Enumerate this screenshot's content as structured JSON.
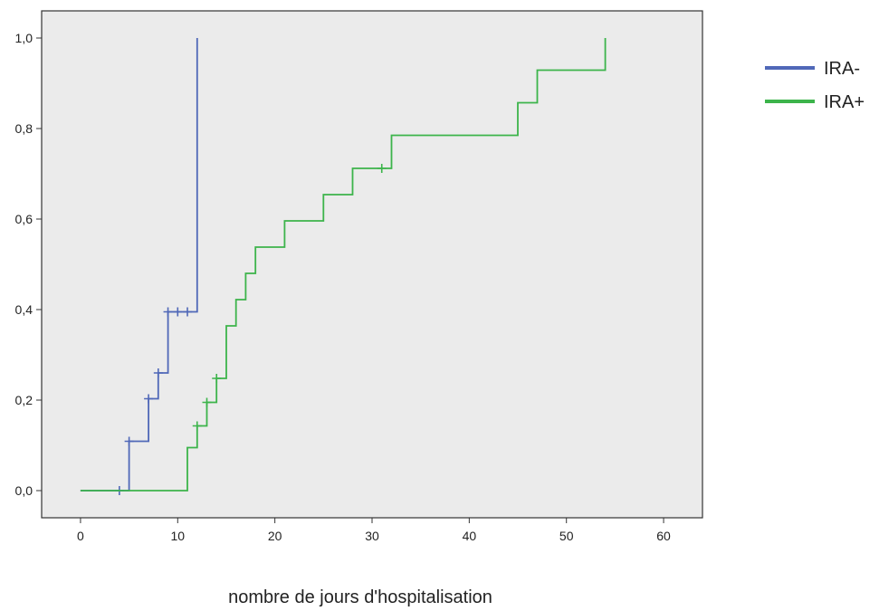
{
  "chart_data": {
    "type": "line",
    "title": "",
    "xlabel": "nombre de jours d'hospitalisation",
    "ylabel": "",
    "xlim": [
      -4,
      64
    ],
    "ylim": [
      -0.06,
      1.06
    ],
    "x_ticks": [
      0,
      10,
      20,
      30,
      40,
      50,
      60
    ],
    "x_tick_labels": [
      "0",
      "10",
      "20",
      "30",
      "40",
      "50",
      "60"
    ],
    "y_ticks": [
      0,
      0.2,
      0.4,
      0.6,
      0.8,
      1.0
    ],
    "y_tick_labels": [
      "0,0",
      "0,2",
      "0,4",
      "0,6",
      "0,8",
      "1,0"
    ],
    "grid": false,
    "background": "#ebebeb",
    "legend_position": "right",
    "series": [
      {
        "name": "IRA-",
        "color": "#5068b8",
        "step_points": [
          [
            0,
            0
          ],
          [
            5,
            0
          ],
          [
            5,
            0.109
          ],
          [
            7,
            0.109
          ],
          [
            7,
            0.203
          ],
          [
            8,
            0.203
          ],
          [
            8,
            0.26
          ],
          [
            9,
            0.26
          ],
          [
            9,
            0.395
          ],
          [
            12,
            0.395
          ],
          [
            12,
            1.0
          ]
        ],
        "censored": [
          [
            4,
            0
          ],
          [
            5,
            0.109
          ],
          [
            7,
            0.203
          ],
          [
            8,
            0.26
          ],
          [
            9,
            0.395
          ],
          [
            10,
            0.395
          ],
          [
            11,
            0.395
          ]
        ]
      },
      {
        "name": "IRA+",
        "color": "#3cb44b",
        "step_points": [
          [
            0,
            0
          ],
          [
            11,
            0
          ],
          [
            11,
            0.095
          ],
          [
            12,
            0.095
          ],
          [
            12,
            0.143
          ],
          [
            13,
            0.143
          ],
          [
            13,
            0.195
          ],
          [
            14,
            0.195
          ],
          [
            14,
            0.248
          ],
          [
            15,
            0.248
          ],
          [
            15,
            0.364
          ],
          [
            16,
            0.364
          ],
          [
            16,
            0.422
          ],
          [
            17,
            0.422
          ],
          [
            17,
            0.48
          ],
          [
            18,
            0.48
          ],
          [
            18,
            0.538
          ],
          [
            21,
            0.538
          ],
          [
            21,
            0.596
          ],
          [
            25,
            0.596
          ],
          [
            25,
            0.654
          ],
          [
            28,
            0.654
          ],
          [
            28,
            0.712
          ],
          [
            32,
            0.712
          ],
          [
            32,
            0.785
          ],
          [
            45,
            0.785
          ],
          [
            45,
            0.857
          ],
          [
            47,
            0.857
          ],
          [
            47,
            0.929
          ],
          [
            54,
            0.929
          ],
          [
            54,
            1.0
          ]
        ],
        "censored": [
          [
            12,
            0.143
          ],
          [
            13,
            0.195
          ],
          [
            14,
            0.248
          ],
          [
            31,
            0.712
          ]
        ]
      }
    ]
  }
}
